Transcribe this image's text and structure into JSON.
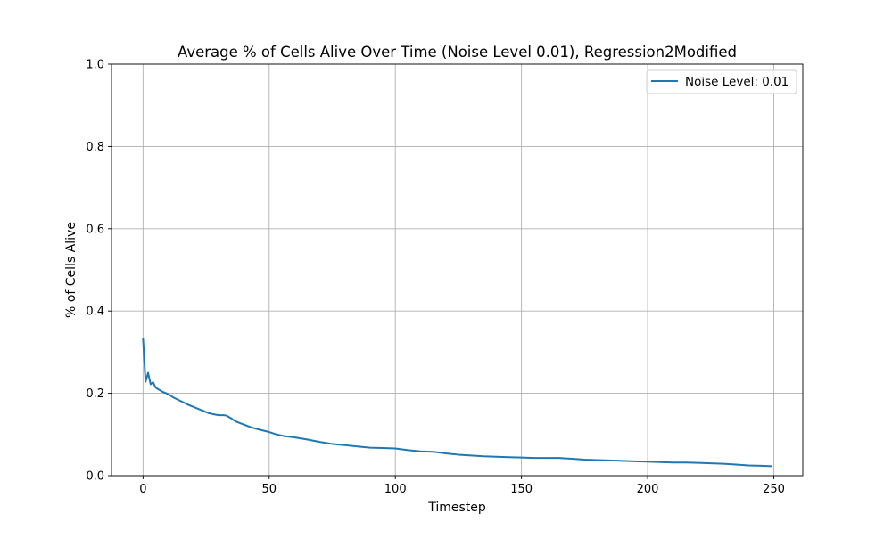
{
  "chart_data": {
    "type": "line",
    "title": "Average % of Cells Alive Over Time (Noise Level 0.01), Regression2Modified",
    "xlabel": "Timestep",
    "ylabel": "% of Cells Alive",
    "xlim": [
      -12.5,
      261.5
    ],
    "ylim": [
      0.0,
      1.0
    ],
    "x_ticks": [
      0,
      50,
      100,
      150,
      200,
      250
    ],
    "y_ticks": [
      0.0,
      0.2,
      0.4,
      0.6,
      0.8,
      1.0
    ],
    "x_tick_labels": [
      "0",
      "50",
      "100",
      "150",
      "200",
      "250"
    ],
    "y_tick_labels": [
      "0.0",
      "0.2",
      "0.4",
      "0.6",
      "0.8",
      "1.0"
    ],
    "grid": true,
    "legend_position": "upper right",
    "series": [
      {
        "name": "Noise Level: 0.01",
        "color": "#1f77b4",
        "x": [
          0,
          1,
          2,
          3,
          4,
          5,
          6,
          8,
          10,
          12,
          14,
          16,
          18,
          20,
          22,
          24,
          26,
          28,
          30,
          32,
          33,
          35,
          37,
          40,
          43,
          46,
          50,
          53,
          56,
          60,
          65,
          70,
          75,
          80,
          85,
          90,
          95,
          100,
          105,
          110,
          115,
          120,
          125,
          130,
          135,
          140,
          145,
          150,
          155,
          160,
          165,
          170,
          175,
          180,
          185,
          190,
          195,
          200,
          205,
          210,
          215,
          220,
          225,
          230,
          235,
          240,
          245,
          249
        ],
        "y": [
          0.333,
          0.228,
          0.25,
          0.222,
          0.227,
          0.214,
          0.21,
          0.203,
          0.198,
          0.19,
          0.184,
          0.178,
          0.172,
          0.167,
          0.162,
          0.157,
          0.152,
          0.149,
          0.147,
          0.147,
          0.146,
          0.139,
          0.131,
          0.124,
          0.117,
          0.112,
          0.106,
          0.1,
          0.096,
          0.093,
          0.088,
          0.082,
          0.077,
          0.074,
          0.071,
          0.068,
          0.067,
          0.066,
          0.062,
          0.059,
          0.058,
          0.054,
          0.051,
          0.049,
          0.047,
          0.046,
          0.045,
          0.044,
          0.043,
          0.043,
          0.043,
          0.041,
          0.039,
          0.038,
          0.037,
          0.036,
          0.035,
          0.034,
          0.033,
          0.032,
          0.032,
          0.031,
          0.03,
          0.029,
          0.027,
          0.025,
          0.024,
          0.023
        ]
      }
    ]
  }
}
